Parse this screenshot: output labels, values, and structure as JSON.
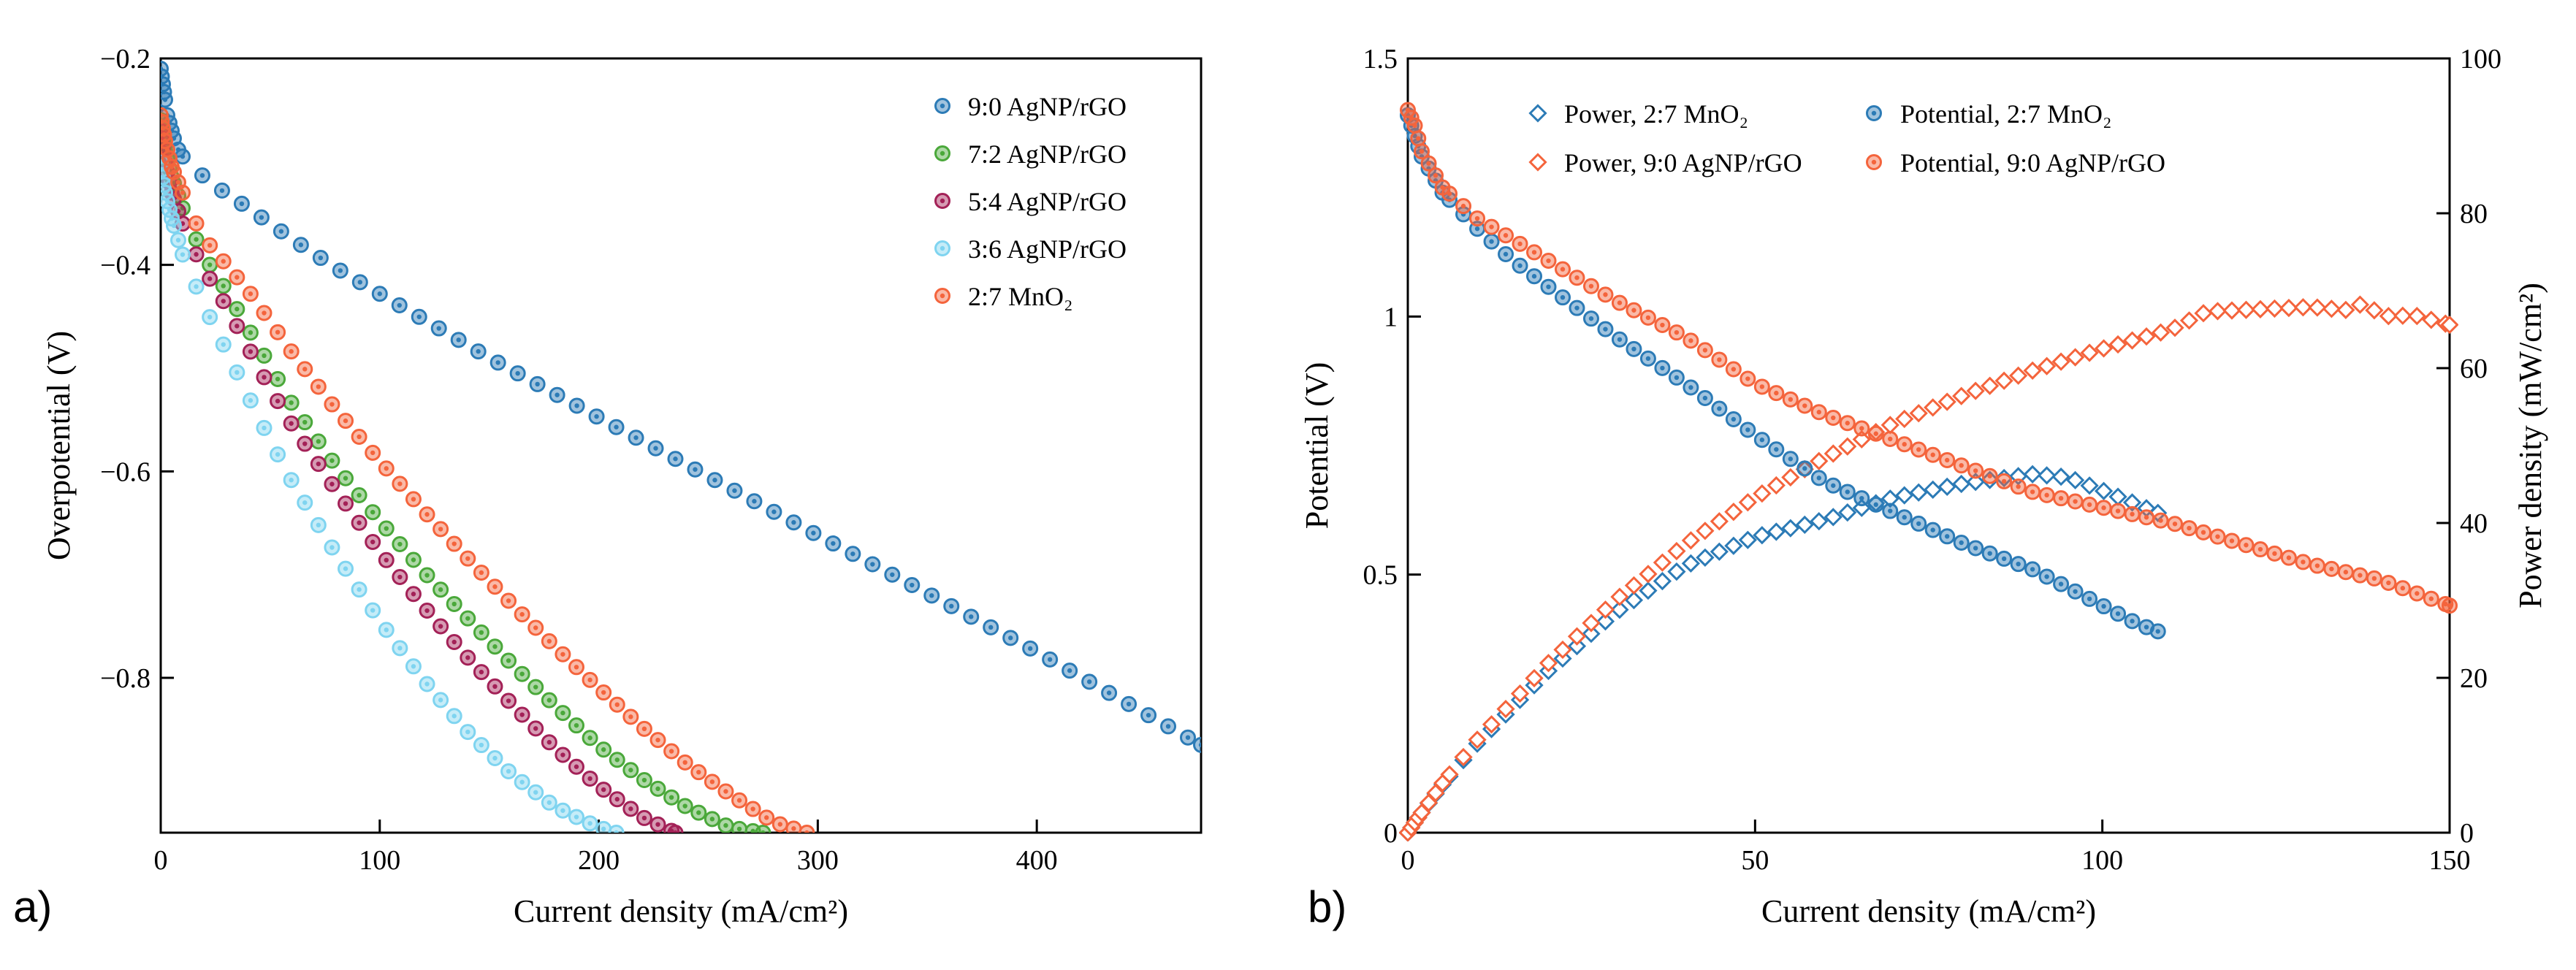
{
  "chart_data": [
    {
      "type": "scatter",
      "panel_label": "a)",
      "title": "",
      "xlabel": "Current density (mA/cm²)",
      "ylabel": "Overpotential (V)",
      "xlim": [
        0,
        475
      ],
      "ylim": [
        -0.95,
        -0.2
      ],
      "xticks": [
        0,
        100,
        200,
        300,
        400
      ],
      "xtick_labels": [
        "0",
        "100",
        "200",
        "300",
        "400"
      ],
      "yticks": [
        -0.2,
        -0.4,
        -0.6,
        -0.8
      ],
      "ytick_labels": [
        "−0.2",
        "−0.4",
        "−0.6",
        "−0.8"
      ],
      "legend_position": "top-right",
      "marker": "circle-dot",
      "series": [
        {
          "name": "9:0 AgNP/rGO",
          "color": "#2c7bb6",
          "x": [
            0,
            1,
            2,
            3,
            5,
            7,
            10,
            14,
            20,
            28,
            40,
            60,
            80,
            100,
            150,
            200,
            250,
            300,
            350,
            400,
            450,
            475
          ],
          "y": [
            -0.21,
            -0.225,
            -0.24,
            -0.255,
            -0.27,
            -0.285,
            -0.295,
            -0.305,
            -0.315,
            -0.328,
            -0.345,
            -0.375,
            -0.403,
            -0.428,
            -0.49,
            -0.548,
            -0.605,
            -0.662,
            -0.718,
            -0.775,
            -0.835,
            -0.865
          ]
        },
        {
          "name": "7:2 AgNP/rGO",
          "color": "#4aa83a",
          "x": [
            0,
            2,
            5,
            10,
            15,
            20,
            30,
            40,
            50,
            60,
            80,
            100,
            120,
            140,
            160,
            180,
            200,
            220,
            240,
            260,
            275
          ],
          "y": [
            -0.26,
            -0.29,
            -0.315,
            -0.345,
            -0.37,
            -0.392,
            -0.425,
            -0.462,
            -0.498,
            -0.535,
            -0.595,
            -0.648,
            -0.697,
            -0.742,
            -0.786,
            -0.827,
            -0.866,
            -0.898,
            -0.925,
            -0.945,
            -0.95
          ]
        },
        {
          "name": "5:4 AgNP/rGO",
          "color": "#a32157",
          "x": [
            0,
            2,
            5,
            10,
            15,
            20,
            30,
            40,
            50,
            60,
            80,
            100,
            120,
            140,
            160,
            180,
            200,
            220,
            235
          ],
          "y": [
            -0.27,
            -0.3,
            -0.33,
            -0.36,
            -0.385,
            -0.405,
            -0.44,
            -0.48,
            -0.52,
            -0.555,
            -0.618,
            -0.678,
            -0.731,
            -0.78,
            -0.825,
            -0.868,
            -0.905,
            -0.935,
            -0.95
          ]
        },
        {
          "name": "3:6 AgNP/rGO",
          "color": "#7fd4f0",
          "x": [
            0,
            2,
            5,
            10,
            15,
            20,
            25,
            30,
            40,
            50,
            60,
            70,
            80,
            100,
            120,
            140,
            160,
            180,
            200,
            208
          ],
          "y": [
            -0.3,
            -0.33,
            -0.355,
            -0.39,
            -0.415,
            -0.44,
            -0.462,
            -0.483,
            -0.527,
            -0.57,
            -0.61,
            -0.645,
            -0.68,
            -0.745,
            -0.802,
            -0.852,
            -0.893,
            -0.925,
            -0.945,
            -0.95
          ]
        },
        {
          "name": "2:7 MnO₂",
          "color": "#f4643c",
          "x": [
            0,
            2,
            5,
            10,
            15,
            20,
            30,
            40,
            50,
            60,
            80,
            100,
            120,
            140,
            160,
            180,
            200,
            220,
            240,
            260,
            280,
            295
          ],
          "y": [
            -0.255,
            -0.28,
            -0.305,
            -0.33,
            -0.355,
            -0.375,
            -0.4,
            -0.425,
            -0.455,
            -0.485,
            -0.54,
            -0.59,
            -0.638,
            -0.684,
            -0.728,
            -0.77,
            -0.81,
            -0.848,
            -0.883,
            -0.913,
            -0.94,
            -0.95
          ]
        }
      ],
      "legend": [
        "9:0 AgNP/rGO",
        "7:2 AgNP/rGO",
        "5:4 AgNP/rGO",
        "3:6 AgNP/rGO",
        "2:7 MnO₂"
      ]
    },
    {
      "type": "scatter",
      "panel_label": "b)",
      "title": "",
      "xlabel": "Current density (mA/cm²)",
      "ylabel": "Potential (V)",
      "y2label": "Power density (mW/cm²)",
      "xlim": [
        0,
        150
      ],
      "ylim": [
        0,
        1.5
      ],
      "y2lim": [
        0,
        100
      ],
      "xticks": [
        0,
        50,
        100,
        150
      ],
      "xtick_labels": [
        "0",
        "50",
        "100",
        "150"
      ],
      "yticks": [
        0,
        0.5,
        1,
        1.5
      ],
      "ytick_labels": [
        "0",
        "0.5",
        "1",
        "1.5"
      ],
      "y2ticks": [
        0,
        20,
        40,
        60,
        80,
        100
      ],
      "y2tick_labels": [
        "0",
        "20",
        "40",
        "60",
        "80",
        "100"
      ],
      "legend_position": "top",
      "series": [
        {
          "name": "Power, 2:7 MnO₂",
          "color": "#2c7bb6",
          "marker": "diamond",
          "axis": "right",
          "x": [
            0,
            1,
            2,
            5,
            10,
            20,
            30,
            40,
            50,
            60,
            70,
            80,
            85,
            90,
            95,
            100,
            105,
            108
          ],
          "y": [
            0,
            1.3,
            2.6,
            6.2,
            11.5,
            20.7,
            28.5,
            34.5,
            38.2,
            40.4,
            43.3,
            45.1,
            45.7,
            46.3,
            45.9,
            44.2,
            42.4,
            41.3
          ]
        },
        {
          "name": "Power, 9:0 AgNP/rGO",
          "color": "#f4643c",
          "marker": "diamond",
          "axis": "right",
          "x": [
            0,
            1,
            2,
            5,
            10,
            20,
            30,
            40,
            50,
            60,
            70,
            80,
            90,
            100,
            110,
            115,
            120,
            125,
            130,
            135,
            138,
            140,
            145,
            150
          ],
          "y": [
            0,
            1.3,
            2.6,
            6.4,
            12.0,
            21.7,
            30.1,
            37.3,
            43.3,
            48.4,
            52.9,
            56.5,
            59.7,
            62.5,
            65.0,
            67.3,
            67.5,
            67.7,
            67.9,
            67.5,
            68.5,
            66.7,
            66.8,
            65.6
          ]
        },
        {
          "name": "Potential, 2:7 MnO₂",
          "color": "#2c7bb6",
          "marker": "circle-dot",
          "axis": "left",
          "x": [
            0,
            1,
            2,
            5,
            10,
            15,
            20,
            30,
            40,
            50,
            60,
            70,
            80,
            90,
            100,
            105,
            108
          ],
          "y": [
            1.39,
            1.35,
            1.31,
            1.24,
            1.17,
            1.11,
            1.06,
            0.96,
            0.87,
            0.77,
            0.68,
            0.62,
            0.56,
            0.51,
            0.44,
            0.405,
            0.39
          ]
        },
        {
          "name": "Potential, 9:0 AgNP/rGO",
          "color": "#f4643c",
          "marker": "circle-dot",
          "axis": "left",
          "x": [
            0,
            1,
            2,
            5,
            10,
            15,
            20,
            30,
            40,
            50,
            60,
            70,
            80,
            90,
            100,
            110,
            120,
            130,
            140,
            150
          ],
          "y": [
            1.4,
            1.37,
            1.32,
            1.25,
            1.19,
            1.15,
            1.11,
            1.03,
            0.96,
            0.87,
            0.81,
            0.76,
            0.71,
            0.66,
            0.63,
            0.6,
            0.56,
            0.52,
            0.49,
            0.44
          ]
        }
      ],
      "legend": [
        "Power, 2:7 MnO₂",
        "Potential, 2:7 MnO₂",
        "Power, 9:0 AgNP/rGO",
        "Potential, 9:0 AgNP/rGO"
      ]
    }
  ]
}
